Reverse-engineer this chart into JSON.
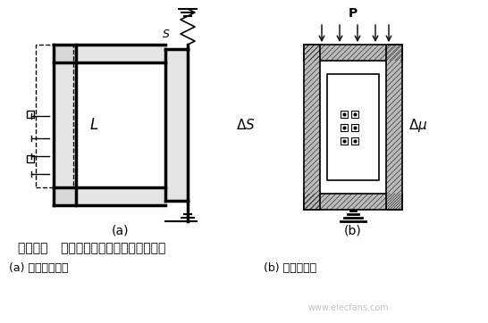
{
  "title_line": "图６－２   变磁阻式电磁传感器的各种形式",
  "sub_a": "(a) 变气隙面积式",
  "sub_b": "(b) 变磁导率式",
  "label_a": "(a)",
  "label_b": "(b)",
  "bg_color": "#ffffff",
  "line_color": "#000000",
  "watermark": "www.elecfans.com"
}
